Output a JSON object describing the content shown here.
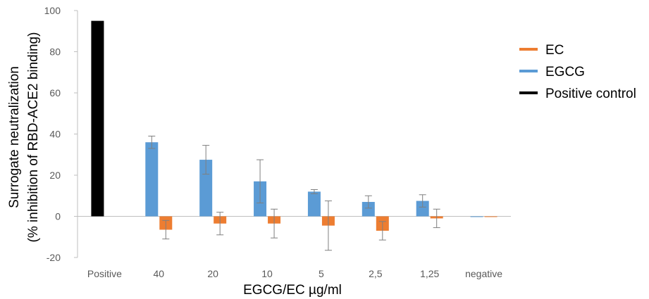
{
  "chart_data": {
    "type": "bar",
    "categories": [
      "Positive",
      "40",
      "20",
      "10",
      "5",
      "2,5",
      "1,25",
      "negative"
    ],
    "series": [
      {
        "name": "Positive control",
        "color": "#000000",
        "values": [
          95,
          null,
          null,
          null,
          null,
          null,
          null,
          null
        ],
        "errors": [
          null,
          null,
          null,
          null,
          null,
          null,
          null,
          null
        ]
      },
      {
        "name": "EGCG",
        "color": "#5B9BD5",
        "values": [
          null,
          36,
          27.5,
          17,
          12,
          7,
          7.5,
          0
        ],
        "errors": [
          null,
          3,
          7,
          10.5,
          1,
          3,
          3,
          null
        ]
      },
      {
        "name": "EC",
        "color": "#ED7D31",
        "values": [
          null,
          -6.5,
          -3.5,
          -3.5,
          -4.5,
          -7,
          -1,
          0
        ],
        "errors": [
          null,
          4.5,
          5.5,
          7,
          12,
          4.5,
          4.5,
          null
        ]
      }
    ],
    "legend": [
      "EC",
      "EGCG",
      "Positive control"
    ],
    "legend_position": "right",
    "xlabel": "EGCG/EC µg/ml",
    "ylabel_line1": "Surrogate neutralization",
    "ylabel_line2": "(% inhibition of RBD-ACE2 binding)",
    "yticks": [
      100,
      80,
      60,
      40,
      20,
      0,
      -20
    ],
    "ylim": [
      -20,
      100
    ],
    "grid": false
  }
}
